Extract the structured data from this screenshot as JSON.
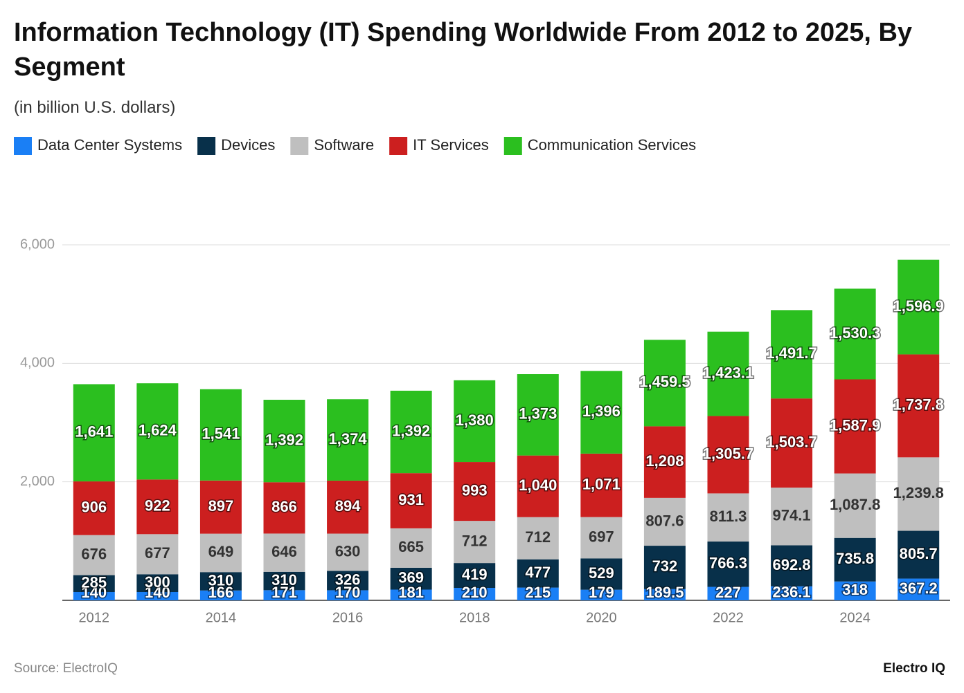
{
  "chart_data": {
    "type": "stacked_bar",
    "title": "Information Technology (IT) Spending Worldwide From 2012 to 2025, By Segment",
    "subtitle": "(in billion U.S. dollars)",
    "source": "Source: ElectroIQ",
    "brand": "Electro IQ",
    "categories": [
      "2012",
      null,
      "2014",
      null,
      "2016",
      null,
      "2018",
      null,
      "2020",
      null,
      "2022",
      null,
      "2024",
      null
    ],
    "ylim": [
      0,
      6000
    ],
    "yticks": [
      {
        "value": 2000,
        "label": "2,000"
      },
      {
        "value": 4000,
        "label": "4,000"
      },
      {
        "value": 6000,
        "label": "6,000"
      }
    ],
    "grid": true,
    "legend": "top-left",
    "series": [
      {
        "name": "Data Center Systems",
        "color": "#1a7ff5",
        "values": [
          140,
          140,
          166,
          171,
          170,
          181,
          210,
          215,
          179,
          189.5,
          227,
          236.1,
          318,
          367.2
        ]
      },
      {
        "name": "Devices",
        "color": "#08304a",
        "values": [
          285,
          300,
          310,
          310,
          326,
          369,
          419,
          477,
          529,
          732,
          766.3,
          692.8,
          735.8,
          805.7
        ]
      },
      {
        "name": "Software",
        "color": "#bfbfbf",
        "values": [
          676,
          677,
          649,
          646,
          630,
          665,
          712,
          712,
          697,
          807.6,
          811.3,
          974.1,
          1087.8,
          1239.8
        ],
        "value_labels": [
          "676",
          "677",
          "649",
          "646",
          "630",
          "665",
          "712",
          "712",
          "697",
          "807.6",
          "811.3",
          "974.1",
          "1,087.8",
          "1,239.8"
        ]
      },
      {
        "name": "IT Services",
        "color": "#cc1f1f",
        "values": [
          906,
          922,
          897,
          866,
          894,
          931,
          993,
          1040,
          1071,
          1208,
          1305.7,
          1503.7,
          1587.9,
          1737.8
        ],
        "value_labels": [
          "906",
          "922",
          "897",
          "866",
          "894",
          "931",
          "993",
          "1,040",
          "1,071",
          "1,208",
          "1,305.7",
          "1,503.7",
          "1,587.9",
          "1,737.8"
        ]
      },
      {
        "name": "Communication Services",
        "color": "#2bbf1f",
        "values": [
          1641,
          1624,
          1541,
          1392,
          1374,
          1392,
          1380,
          1373,
          1396,
          1459.5,
          1423.1,
          1491.7,
          1530.3,
          1596.9
        ],
        "value_labels": [
          "1,641",
          "1,624",
          "1,541",
          "1,392",
          "1,374",
          "1,392",
          "1,380",
          "1,373",
          "1,396",
          "1,459.5",
          "1,423.1",
          "1,491.7",
          "1,530.3",
          "1,596.9"
        ]
      }
    ]
  }
}
